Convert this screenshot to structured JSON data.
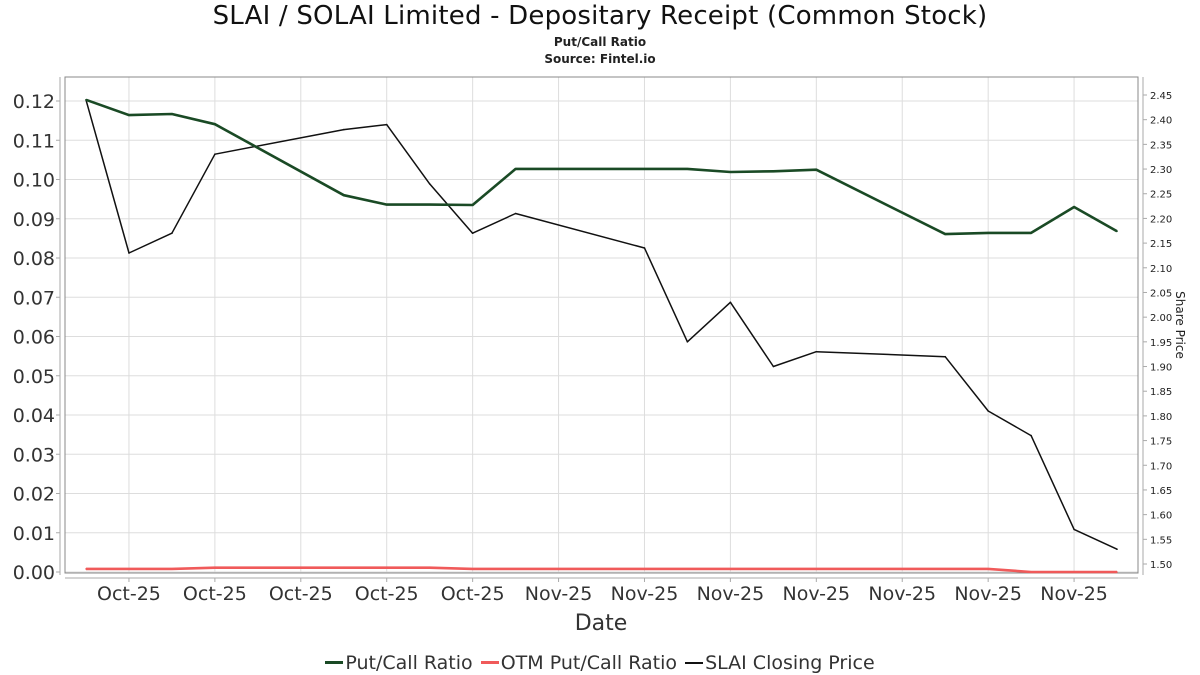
{
  "header": {
    "title": "SLAI / SOLAI Limited - Depositary Receipt (Common Stock)",
    "subtitle": "Put/Call Ratio",
    "source": "Source: Fintel.io"
  },
  "chart_data": {
    "type": "line",
    "title": "SLAI / SOLAI Limited - Depositary Receipt (Common Stock)",
    "subtitle": "Put/Call Ratio; Source: Fintel.io",
    "xlabel": "Date",
    "ylabel": "",
    "y2label": "Share Price",
    "grid": true,
    "legend_position": "bottom",
    "x_index_range": [
      0,
      24
    ],
    "x_ticks": [
      {
        "index": 1,
        "label": "Oct-25"
      },
      {
        "index": 3,
        "label": "Oct-25"
      },
      {
        "index": 5,
        "label": "Oct-25"
      },
      {
        "index": 7,
        "label": "Oct-25"
      },
      {
        "index": 9,
        "label": "Oct-25"
      },
      {
        "index": 11,
        "label": "Nov-25"
      },
      {
        "index": 13,
        "label": "Nov-25"
      },
      {
        "index": 15,
        "label": "Nov-25"
      },
      {
        "index": 17,
        "label": "Nov-25"
      },
      {
        "index": 19,
        "label": "Nov-25"
      },
      {
        "index": 21,
        "label": "Nov-25"
      },
      {
        "index": 23,
        "label": "Nov-25"
      }
    ],
    "x": [
      0,
      1,
      2,
      3,
      6,
      7,
      8,
      9,
      10,
      13,
      14,
      15,
      16,
      17,
      20,
      21,
      22,
      23,
      24
    ],
    "ylim": [
      0,
      0.12
    ],
    "y_ticks": [
      "0.00",
      "0.01",
      "0.02",
      "0.03",
      "0.04",
      "0.05",
      "0.06",
      "0.07",
      "0.08",
      "0.09",
      "0.10",
      "0.11",
      "0.12"
    ],
    "y2lim": [
      1.5,
      2.45
    ],
    "y2_ticks": [
      "1.50",
      "1.55",
      "1.60",
      "1.65",
      "1.70",
      "1.75",
      "1.80",
      "1.85",
      "1.90",
      "1.95",
      "2.00",
      "2.05",
      "2.10",
      "2.15",
      "2.20",
      "2.25",
      "2.30",
      "2.35",
      "2.40",
      "2.45"
    ],
    "series": [
      {
        "name": "Put/Call Ratio",
        "axis": "left",
        "color": "#1a4a25",
        "values": [
          0.1203,
          0.1164,
          0.1167,
          0.1141,
          0.096,
          0.0936,
          0.0936,
          0.0935,
          0.1027,
          0.1027,
          0.1027,
          0.1019,
          0.1021,
          0.1025,
          0.0861,
          0.0864,
          0.0864,
          0.093,
          0.0868
        ]
      },
      {
        "name": "OTM Put/Call Ratio",
        "axis": "left",
        "color": "#f05a5a",
        "values": [
          0.0008,
          0.0008,
          0.0008,
          0.0011,
          0.0011,
          0.0011,
          0.0011,
          0.0008,
          0.0008,
          0.0008,
          0.0008,
          0.0008,
          0.0008,
          0.0008,
          0.0008,
          0.0008,
          0.0,
          0.0,
          0.0
        ]
      },
      {
        "name": "SLAI Closing Price",
        "axis": "right",
        "color": "#111111",
        "values": [
          2.44,
          2.13,
          2.17,
          2.33,
          2.38,
          2.39,
          2.27,
          2.17,
          2.21,
          2.14,
          1.95,
          2.03,
          1.9,
          1.93,
          1.92,
          1.81,
          1.76,
          1.57,
          1.53
        ]
      }
    ]
  },
  "legend": {
    "items": [
      {
        "label": "Put/Call Ratio",
        "color": "#1a4a25"
      },
      {
        "label": "OTM Put/Call Ratio",
        "color": "#f05a5a"
      },
      {
        "label": "SLAI Closing Price",
        "color": "#111111"
      }
    ]
  }
}
